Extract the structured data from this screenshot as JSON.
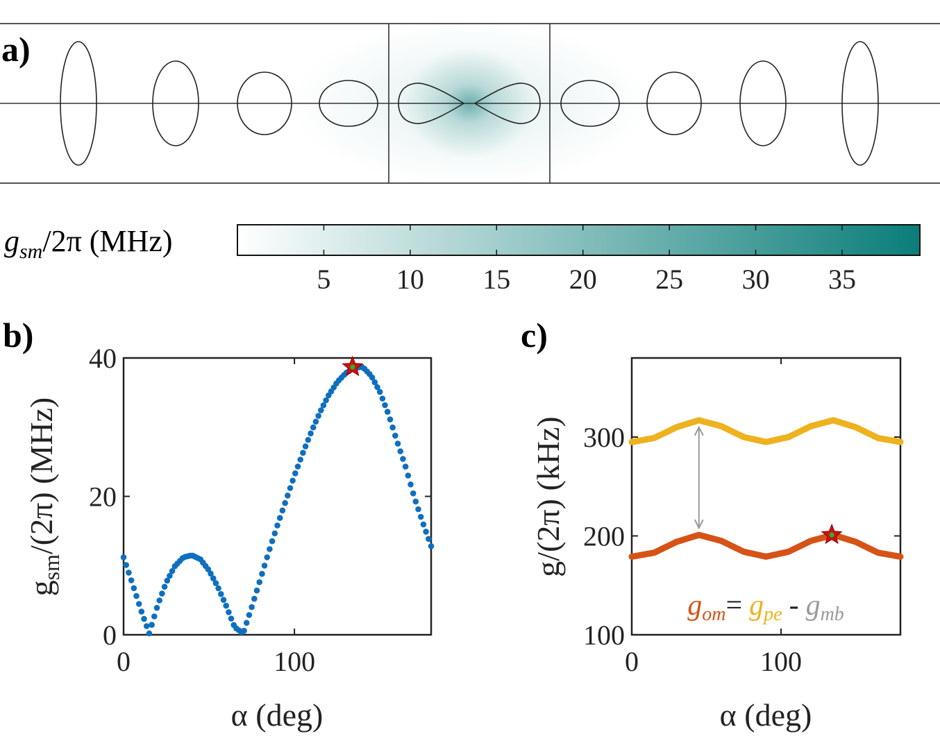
{
  "panel_a": {
    "label": "a)",
    "colorbar": {
      "label_main": "g",
      "label_sub": "sm",
      "label_rest": "/2π (MHz)",
      "ticks": [
        "5",
        "10",
        "15",
        "20",
        "25",
        "30",
        "35"
      ],
      "range": [
        0,
        39.5
      ],
      "color_low": "#ffffff",
      "color_high": "#0b7d79"
    }
  },
  "chart_data": [
    {
      "type": "scatter",
      "panel": "b)",
      "xlabel": "α (deg)",
      "ylabel_main": "g",
      "ylabel_sub": "sm",
      "ylabel_rest": "/(2π) (MHz)",
      "xlim": [
        0,
        180
      ],
      "ylim": [
        0,
        40
      ],
      "xticks": [
        "0",
        "100"
      ],
      "xtick_values": [
        0,
        100
      ],
      "yticks": [
        "0",
        "20",
        "40"
      ],
      "ytick_values": [
        0,
        20,
        40
      ],
      "series": [
        {
          "color": "#0f6fbf",
          "x": [
            0,
            5,
            10,
            15,
            20,
            25,
            30,
            35,
            40,
            45,
            50,
            55,
            60,
            65,
            70,
            75,
            80,
            85,
            90,
            95,
            100,
            105,
            110,
            115,
            120,
            125,
            130,
            135,
            140,
            145,
            150,
            155,
            160,
            165,
            170,
            175,
            180
          ],
          "y": [
            11.2,
            7.5,
            3.7,
            0.2,
            4.3,
            7.6,
            9.9,
            11.2,
            11.5,
            10.9,
            9.3,
            7.0,
            4.2,
            1.1,
            0.2,
            4.0,
            8.0,
            12.0,
            15.8,
            19.4,
            23.0,
            26.3,
            29.4,
            32.2,
            34.6,
            36.5,
            37.8,
            38.6,
            38.7,
            37.4,
            35.1,
            31.9,
            28.0,
            24.3,
            20.0,
            16.3,
            12.8
          ]
        }
      ],
      "marker": {
        "x": 134,
        "y": 38.7,
        "star_color": "#cc1111",
        "dot_color": "#22bb22"
      }
    },
    {
      "type": "line",
      "panel": "c)",
      "xlabel": "α (deg)",
      "ylabel": "g/(2π) (kHz)",
      "xlim": [
        0,
        180
      ],
      "ylim": [
        100,
        380
      ],
      "xticks": [
        "0",
        "100"
      ],
      "xtick_values": [
        0,
        100
      ],
      "yticks": [
        "100",
        "200",
        "300"
      ],
      "ytick_values": [
        100,
        200,
        300
      ],
      "series": [
        {
          "name": "g_pe",
          "color": "#eeb21f",
          "x": [
            0,
            15,
            30,
            45,
            60,
            75,
            90,
            105,
            120,
            135,
            150,
            165,
            180
          ],
          "y": [
            295,
            299,
            310,
            317,
            311,
            300,
            295,
            300,
            311,
            317,
            310,
            299,
            295
          ]
        },
        {
          "name": "g_om",
          "color": "#d65317",
          "x": [
            0,
            15,
            30,
            45,
            60,
            75,
            90,
            105,
            120,
            135,
            150,
            165,
            180
          ],
          "y": [
            179,
            183,
            194,
            201,
            195,
            184,
            179,
            184,
            195,
            201,
            194,
            183,
            179
          ]
        }
      ],
      "arrow": {
        "x": 45,
        "y_from": 201,
        "y_to": 317,
        "color": "#9a9a9a"
      },
      "marker": {
        "x": 134,
        "y": 201,
        "star_color": "#cc1111",
        "dot_color": "#22bb22"
      },
      "legend": {
        "om": {
          "main": "g",
          "sub": "om",
          "color": "#d65317"
        },
        "eq": "=",
        "pe": {
          "main": "g",
          "sub": "pe",
          "color": "#eeb21f"
        },
        "minus": "-",
        "mb": {
          "main": "g",
          "sub": "mb",
          "color": "#9a9a9a"
        },
        "placement": "bottom-center"
      }
    }
  ]
}
